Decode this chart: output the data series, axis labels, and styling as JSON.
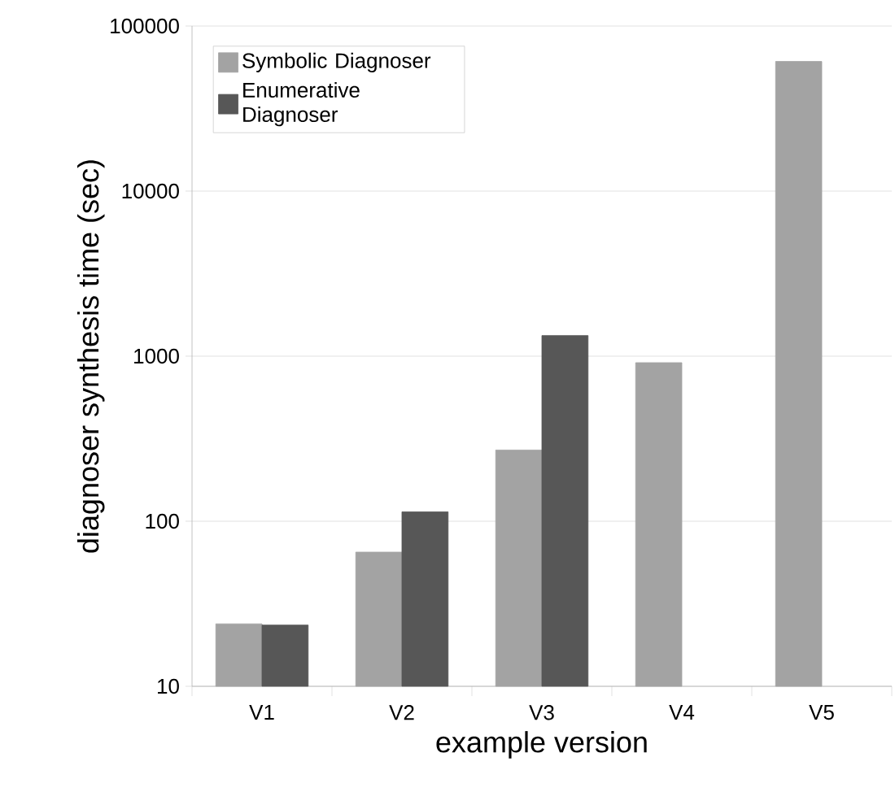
{
  "chart_data": {
    "type": "bar",
    "xlabel": "example version",
    "ylabel": "diagnoser synthesis time (sec)",
    "categories": [
      "V1",
      "V2",
      "V3",
      "V4",
      "V5"
    ],
    "series": [
      {
        "name": "Symbolic Diagnoser",
        "color": "#a3a3a3",
        "values": [
          23.9,
          65,
          270,
          913,
          61000
        ]
      },
      {
        "name": "Enumerative Diagnoser",
        "color": "#575757",
        "values": [
          23.5,
          114,
          1333,
          null,
          null
        ]
      }
    ],
    "log": "y",
    "ylim": [
      10,
      100000
    ],
    "yticks": [
      10,
      100,
      1000,
      10000,
      100000
    ],
    "grid": "y",
    "legend": "top left"
  }
}
